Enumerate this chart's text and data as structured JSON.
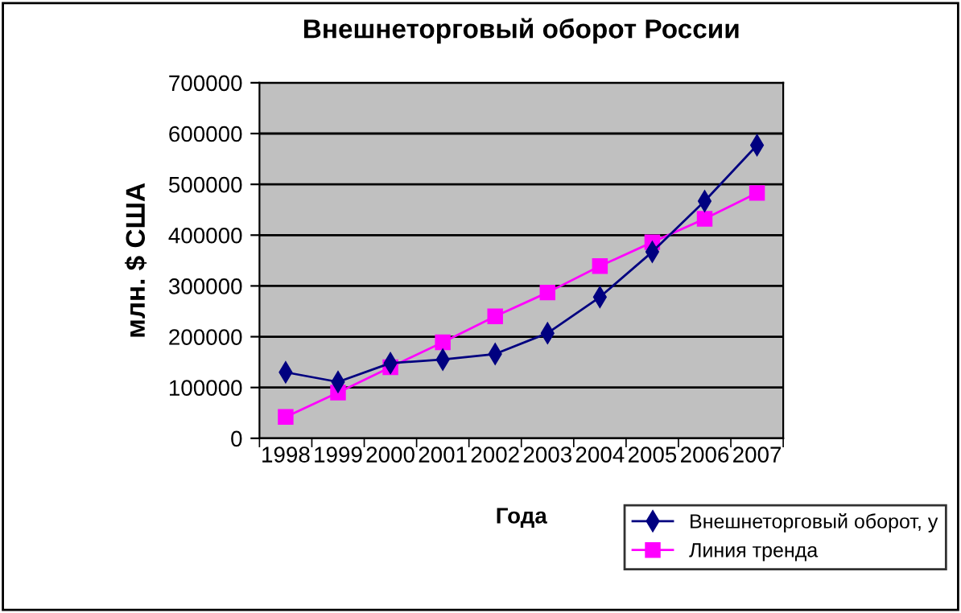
{
  "chart_data": {
    "type": "line",
    "title": "Внешнеторговый оборот России",
    "xlabel": "Года",
    "ylabel": "млн. $ США",
    "categories": [
      "1998",
      "1999",
      "2000",
      "2001",
      "2002",
      "2003",
      "2004",
      "2005",
      "2006",
      "2007"
    ],
    "series": [
      {
        "name": "Внешнеторговый оборот, у",
        "color": "#000080",
        "marker": "diamond",
        "values": [
          130000,
          111000,
          148000,
          155000,
          166000,
          207000,
          278000,
          367000,
          467000,
          577000
        ]
      },
      {
        "name": "Линия тренда",
        "color": "#ff00ff",
        "marker": "square",
        "values": [
          42000,
          90000,
          140000,
          189000,
          240000,
          287000,
          339000,
          386000,
          432000,
          483000
        ]
      }
    ],
    "ylim": [
      0,
      700000
    ],
    "yticks": [
      0,
      100000,
      200000,
      300000,
      400000,
      500000,
      600000,
      700000
    ],
    "grid": "y",
    "legend": "bottom right",
    "line_style": "solid"
  }
}
